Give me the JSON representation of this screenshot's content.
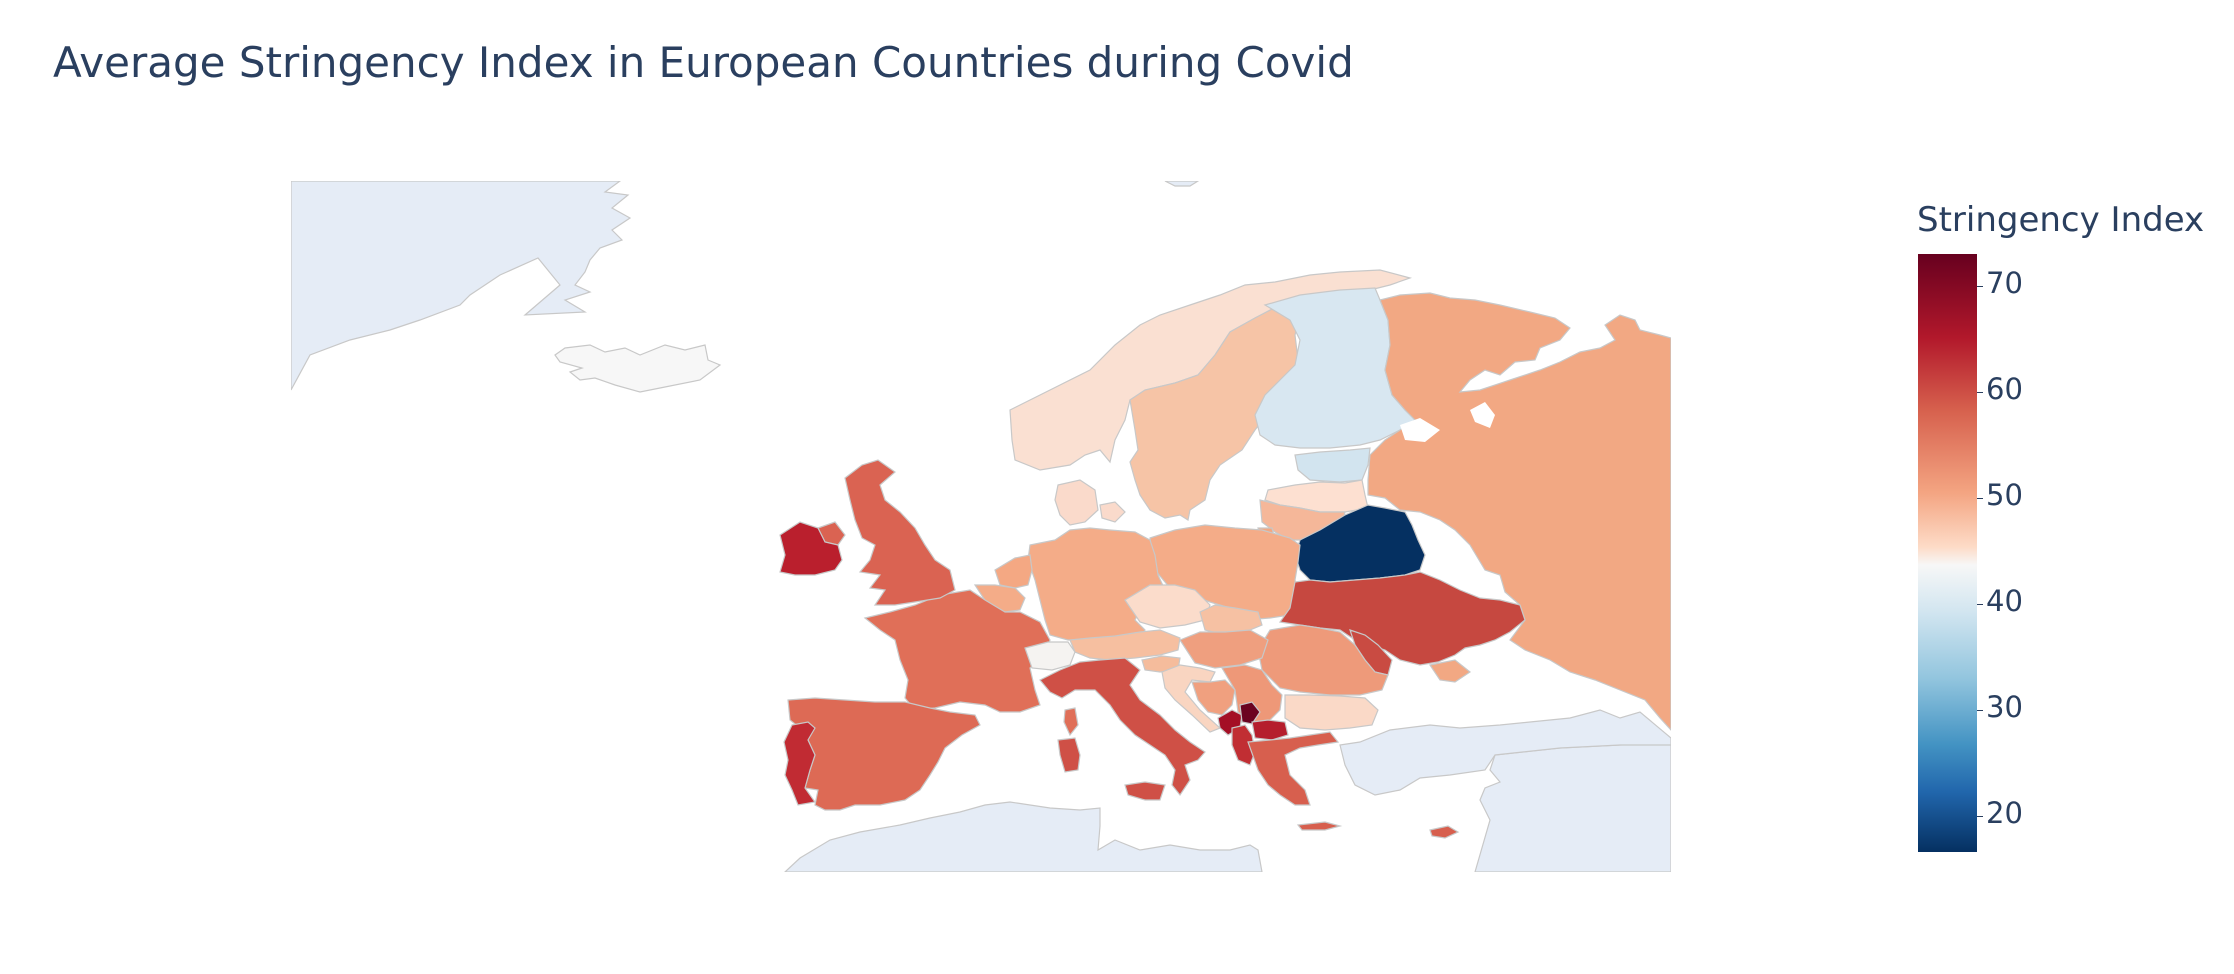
{
  "title": "Average Stringency Index in European Countries during Covid",
  "colorbar": {
    "title": "Stringency Index",
    "ticks": [
      "70",
      "60",
      "50",
      "40",
      "30",
      "20"
    ]
  },
  "colors": {
    "land_background": "#e5ecf6",
    "border": "#c8c8c8",
    "title_text": "#2a3f5f"
  },
  "map_data": {
    "type": "choropleth",
    "scope": "europe",
    "value_range": [
      16,
      73
    ],
    "countries": [
      {
        "name": "Iceland",
        "value": 48
      },
      {
        "name": "Norway",
        "value": 51
      },
      {
        "name": "Sweden",
        "value": 54
      },
      {
        "name": "Finland",
        "value": 42
      },
      {
        "name": "Estonia",
        "value": 43
      },
      {
        "name": "Latvia",
        "value": 52
      },
      {
        "name": "Lithuania",
        "value": 55
      },
      {
        "name": "Russia",
        "value": 57
      },
      {
        "name": "Belarus",
        "value": 16
      },
      {
        "name": "Ukraine",
        "value": 63
      },
      {
        "name": "Moldova",
        "value": 64
      },
      {
        "name": "Poland",
        "value": 58
      },
      {
        "name": "Germany",
        "value": 57
      },
      {
        "name": "Denmark",
        "value": 52
      },
      {
        "name": "Netherlands",
        "value": 58
      },
      {
        "name": "Belgium",
        "value": 57
      },
      {
        "name": "United Kingdom",
        "value": 62
      },
      {
        "name": "Ireland",
        "value": 68
      },
      {
        "name": "France",
        "value": 61
      },
      {
        "name": "Spain",
        "value": 62
      },
      {
        "name": "Portugal",
        "value": 66
      },
      {
        "name": "Italy",
        "value": 65
      },
      {
        "name": "Switzerland",
        "value": 47
      },
      {
        "name": "Austria",
        "value": 56
      },
      {
        "name": "Czechia",
        "value": 52
      },
      {
        "name": "Slovakia",
        "value": 55
      },
      {
        "name": "Hungary",
        "value": 58
      },
      {
        "name": "Slovenia",
        "value": 55
      },
      {
        "name": "Croatia",
        "value": 53
      },
      {
        "name": "Bosnia and Herzegovina",
        "value": 58
      },
      {
        "name": "Serbia",
        "value": 58
      },
      {
        "name": "Montenegro",
        "value": 71
      },
      {
        "name": "Kosovo",
        "value": 73
      },
      {
        "name": "Albania",
        "value": 66
      },
      {
        "name": "North Macedonia",
        "value": 67
      },
      {
        "name": "Romania",
        "value": 59
      },
      {
        "name": "Bulgaria",
        "value": 52
      },
      {
        "name": "Greece",
        "value": 62
      },
      {
        "name": "Cyprus",
        "value": 62
      },
      {
        "name": "Turkey",
        "value": null
      }
    ]
  }
}
